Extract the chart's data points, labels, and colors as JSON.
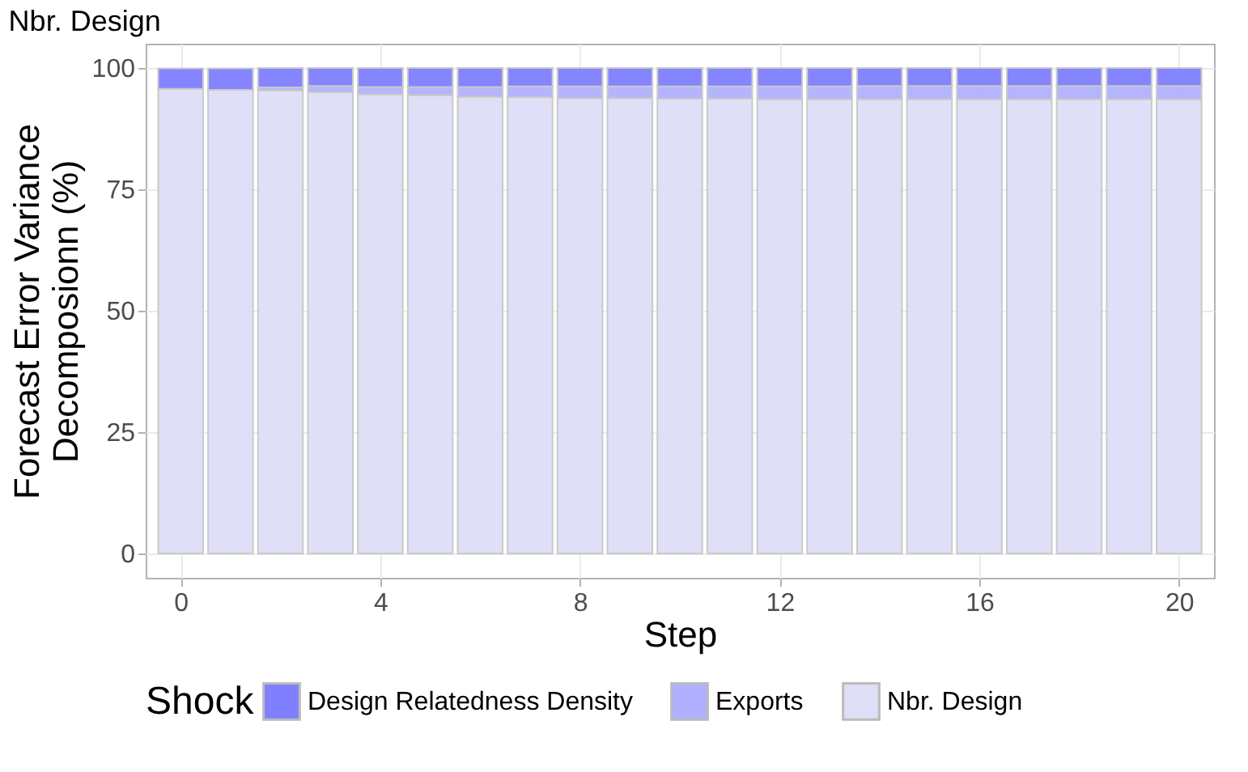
{
  "chart_data": {
    "type": "bar",
    "title": "Nbr. Design",
    "xlabel": "Step",
    "ylabel": "Forecast Error Variance\nDecomposionn (%)",
    "legend_title": "Shock",
    "x": [
      0,
      1,
      2,
      3,
      4,
      5,
      6,
      7,
      8,
      9,
      10,
      11,
      12,
      13,
      14,
      15,
      16,
      17,
      18,
      19,
      20
    ],
    "stacked": true,
    "series": [
      {
        "name": "Nbr. Design",
        "color": "#dedef7",
        "values": [
          95.7,
          95.5,
          95.4,
          95.0,
          94.6,
          94.4,
          94.1,
          94.0,
          93.8,
          93.8,
          93.7,
          93.7,
          93.6,
          93.6,
          93.6,
          93.6,
          93.6,
          93.6,
          93.6,
          93.6,
          93.6
        ]
      },
      {
        "name": "Exports",
        "color": "#b0b0ff",
        "values": [
          null,
          null,
          0.6,
          1.3,
          1.5,
          1.7,
          2.0,
          2.2,
          2.4,
          2.4,
          2.5,
          2.5,
          2.6,
          2.6,
          2.7,
          2.7,
          2.7,
          2.7,
          2.7,
          2.7,
          2.7
        ]
      },
      {
        "name": "Design Relatedness Density",
        "color": "#7f7fff",
        "values": [
          4.2,
          4.4,
          4.0,
          3.7,
          3.9,
          3.9,
          3.9,
          3.8,
          3.8,
          3.8,
          3.8,
          3.8,
          3.8,
          3.8,
          3.7,
          3.7,
          3.7,
          3.7,
          3.7,
          3.7,
          3.7
        ]
      }
    ],
    "xlim": [
      -0.7,
      20.7
    ],
    "xticks": [
      0,
      4,
      8,
      12,
      16,
      20
    ],
    "ylim": [
      -5,
      105
    ],
    "yticks": [
      0,
      25,
      50,
      75,
      100
    ],
    "grid": true,
    "legend": "bottom"
  }
}
